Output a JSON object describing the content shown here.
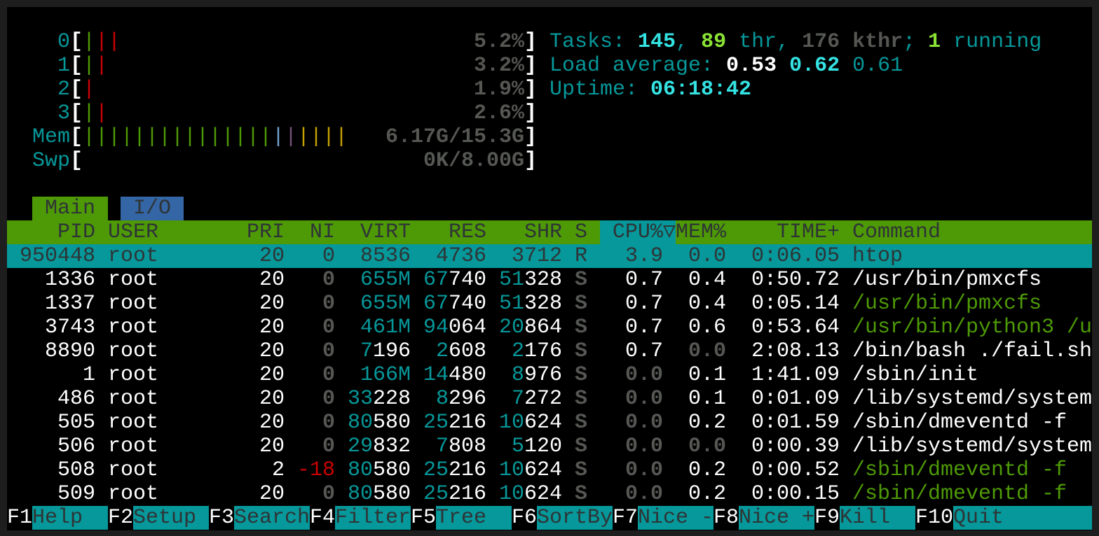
{
  "colors": {
    "teal": "#06989a",
    "bright_cyan": "#34e2e2",
    "bright_green": "#8ae234",
    "green": "#4e9a06",
    "red": "#cc0000",
    "header_bg": "#4e9a06",
    "selected_bg": "#06989a",
    "io_tab_bg": "#3465a4"
  },
  "meters": {
    "cpus": [
      {
        "label": "0",
        "value": "5.2%",
        "bars": [
          "green",
          "red",
          "red"
        ]
      },
      {
        "label": "1",
        "value": "3.2%",
        "bars": [
          "green",
          "red"
        ]
      },
      {
        "label": "2",
        "value": "1.9%",
        "bars": [
          "red"
        ]
      },
      {
        "label": "3",
        "value": "2.6%",
        "bars": [
          "green",
          "red"
        ]
      }
    ],
    "mem": {
      "label": "Mem",
      "value": "6.17G/15.3G",
      "bars": [
        "green",
        "green",
        "green",
        "green",
        "green",
        "green",
        "green",
        "green",
        "green",
        "green",
        "green",
        "green",
        "green",
        "green",
        "green",
        "blue",
        "mag",
        "yel",
        "yel",
        "yel",
        "yel"
      ]
    },
    "swap": {
      "label": "Swp",
      "value": "0K/8.00G",
      "bars": []
    }
  },
  "summary": {
    "tasks_label": "Tasks: ",
    "tasks": "145",
    "thr": "89",
    "thr_label": " thr, ",
    "kthr": "176 kthr",
    "running": "1",
    "running_label": " running",
    "load_label": "Load average: ",
    "load1": "0.53",
    "load5": "0.62",
    "load15": "0.61",
    "uptime_label": "Uptime: ",
    "uptime": "06:18:42"
  },
  "tabs": [
    {
      "label": "Main",
      "active": true
    },
    {
      "label": "I/O",
      "active": false
    }
  ],
  "columns": [
    "PID",
    "USER",
    "PRI",
    "NI",
    "VIRT",
    "RES",
    "SHR",
    "S",
    "CPU%",
    "MEM%",
    "TIME+",
    "Command"
  ],
  "sort_column": "CPU%",
  "sort_indicator": "▽",
  "processes": [
    {
      "pid": "950448",
      "user": "root",
      "pri": "20",
      "ni": "0",
      "virt": "8536",
      "res": "4736",
      "shr": "3712",
      "s": "R",
      "cpu": "3.9",
      "mem": "0.0",
      "time": "0:06.05",
      "command": "htop",
      "selected": true,
      "thread": false
    },
    {
      "pid": "1336",
      "user": "root",
      "pri": "20",
      "ni": "0",
      "virt": "655M",
      "res": "67740",
      "shr": "51328",
      "s": "S",
      "cpu": "0.7",
      "mem": "0.4",
      "time": "0:50.72",
      "command": "/usr/bin/pmxcfs",
      "thread": false
    },
    {
      "pid": "1337",
      "user": "root",
      "pri": "20",
      "ni": "0",
      "virt": "655M",
      "res": "67740",
      "shr": "51328",
      "s": "S",
      "cpu": "0.7",
      "mem": "0.4",
      "time": "0:05.14",
      "command": "/usr/bin/pmxcfs",
      "thread": true
    },
    {
      "pid": "3743",
      "user": "root",
      "pri": "20",
      "ni": "0",
      "virt": "461M",
      "res": "94064",
      "shr": "20864",
      "s": "S",
      "cpu": "0.7",
      "mem": "0.6",
      "time": "0:53.64",
      "command": "/usr/bin/python3 /u",
      "thread": true
    },
    {
      "pid": "8890",
      "user": "root",
      "pri": "20",
      "ni": "0",
      "virt": "7196",
      "res": "2608",
      "shr": "2176",
      "s": "S",
      "cpu": "0.7",
      "mem": "0.0",
      "time": "2:08.13",
      "command": "/bin/bash ./fail.sh",
      "thread": false
    },
    {
      "pid": "1",
      "user": "root",
      "pri": "20",
      "ni": "0",
      "virt": "166M",
      "res": "14480",
      "shr": "8976",
      "s": "S",
      "cpu": "0.0",
      "mem": "0.1",
      "time": "1:41.09",
      "command": "/sbin/init",
      "thread": false
    },
    {
      "pid": "486",
      "user": "root",
      "pri": "20",
      "ni": "0",
      "virt": "33228",
      "res": "8296",
      "shr": "7272",
      "s": "S",
      "cpu": "0.0",
      "mem": "0.1",
      "time": "0:01.09",
      "command": "/lib/systemd/system",
      "thread": false
    },
    {
      "pid": "505",
      "user": "root",
      "pri": "20",
      "ni": "0",
      "virt": "80580",
      "res": "25216",
      "shr": "10624",
      "s": "S",
      "cpu": "0.0",
      "mem": "0.2",
      "time": "0:01.59",
      "command": "/sbin/dmeventd -f",
      "thread": false
    },
    {
      "pid": "506",
      "user": "root",
      "pri": "20",
      "ni": "0",
      "virt": "29832",
      "res": "7808",
      "shr": "5120",
      "s": "S",
      "cpu": "0.0",
      "mem": "0.0",
      "time": "0:00.39",
      "command": "/lib/systemd/system",
      "thread": false
    },
    {
      "pid": "508",
      "user": "root",
      "pri": "2",
      "ni": "-18",
      "virt": "80580",
      "res": "25216",
      "shr": "10624",
      "s": "S",
      "cpu": "0.0",
      "mem": "0.2",
      "time": "0:00.52",
      "command": "/sbin/dmeventd -f",
      "thread": true
    },
    {
      "pid": "509",
      "user": "root",
      "pri": "20",
      "ni": "0",
      "virt": "80580",
      "res": "25216",
      "shr": "10624",
      "s": "S",
      "cpu": "0.0",
      "mem": "0.2",
      "time": "0:00.15",
      "command": "/sbin/dmeventd -f",
      "thread": true
    }
  ],
  "function_bar": [
    {
      "key": "F1",
      "label": "Help"
    },
    {
      "key": "F2",
      "label": "Setup"
    },
    {
      "key": "F3",
      "label": "Search"
    },
    {
      "key": "F4",
      "label": "Filter"
    },
    {
      "key": "F5",
      "label": "Tree"
    },
    {
      "key": "F6",
      "label": "SortBy"
    },
    {
      "key": "F7",
      "label": "Nice -"
    },
    {
      "key": "F8",
      "label": "Nice +"
    },
    {
      "key": "F9",
      "label": "Kill"
    },
    {
      "key": "F10",
      "label": "Quit"
    }
  ]
}
